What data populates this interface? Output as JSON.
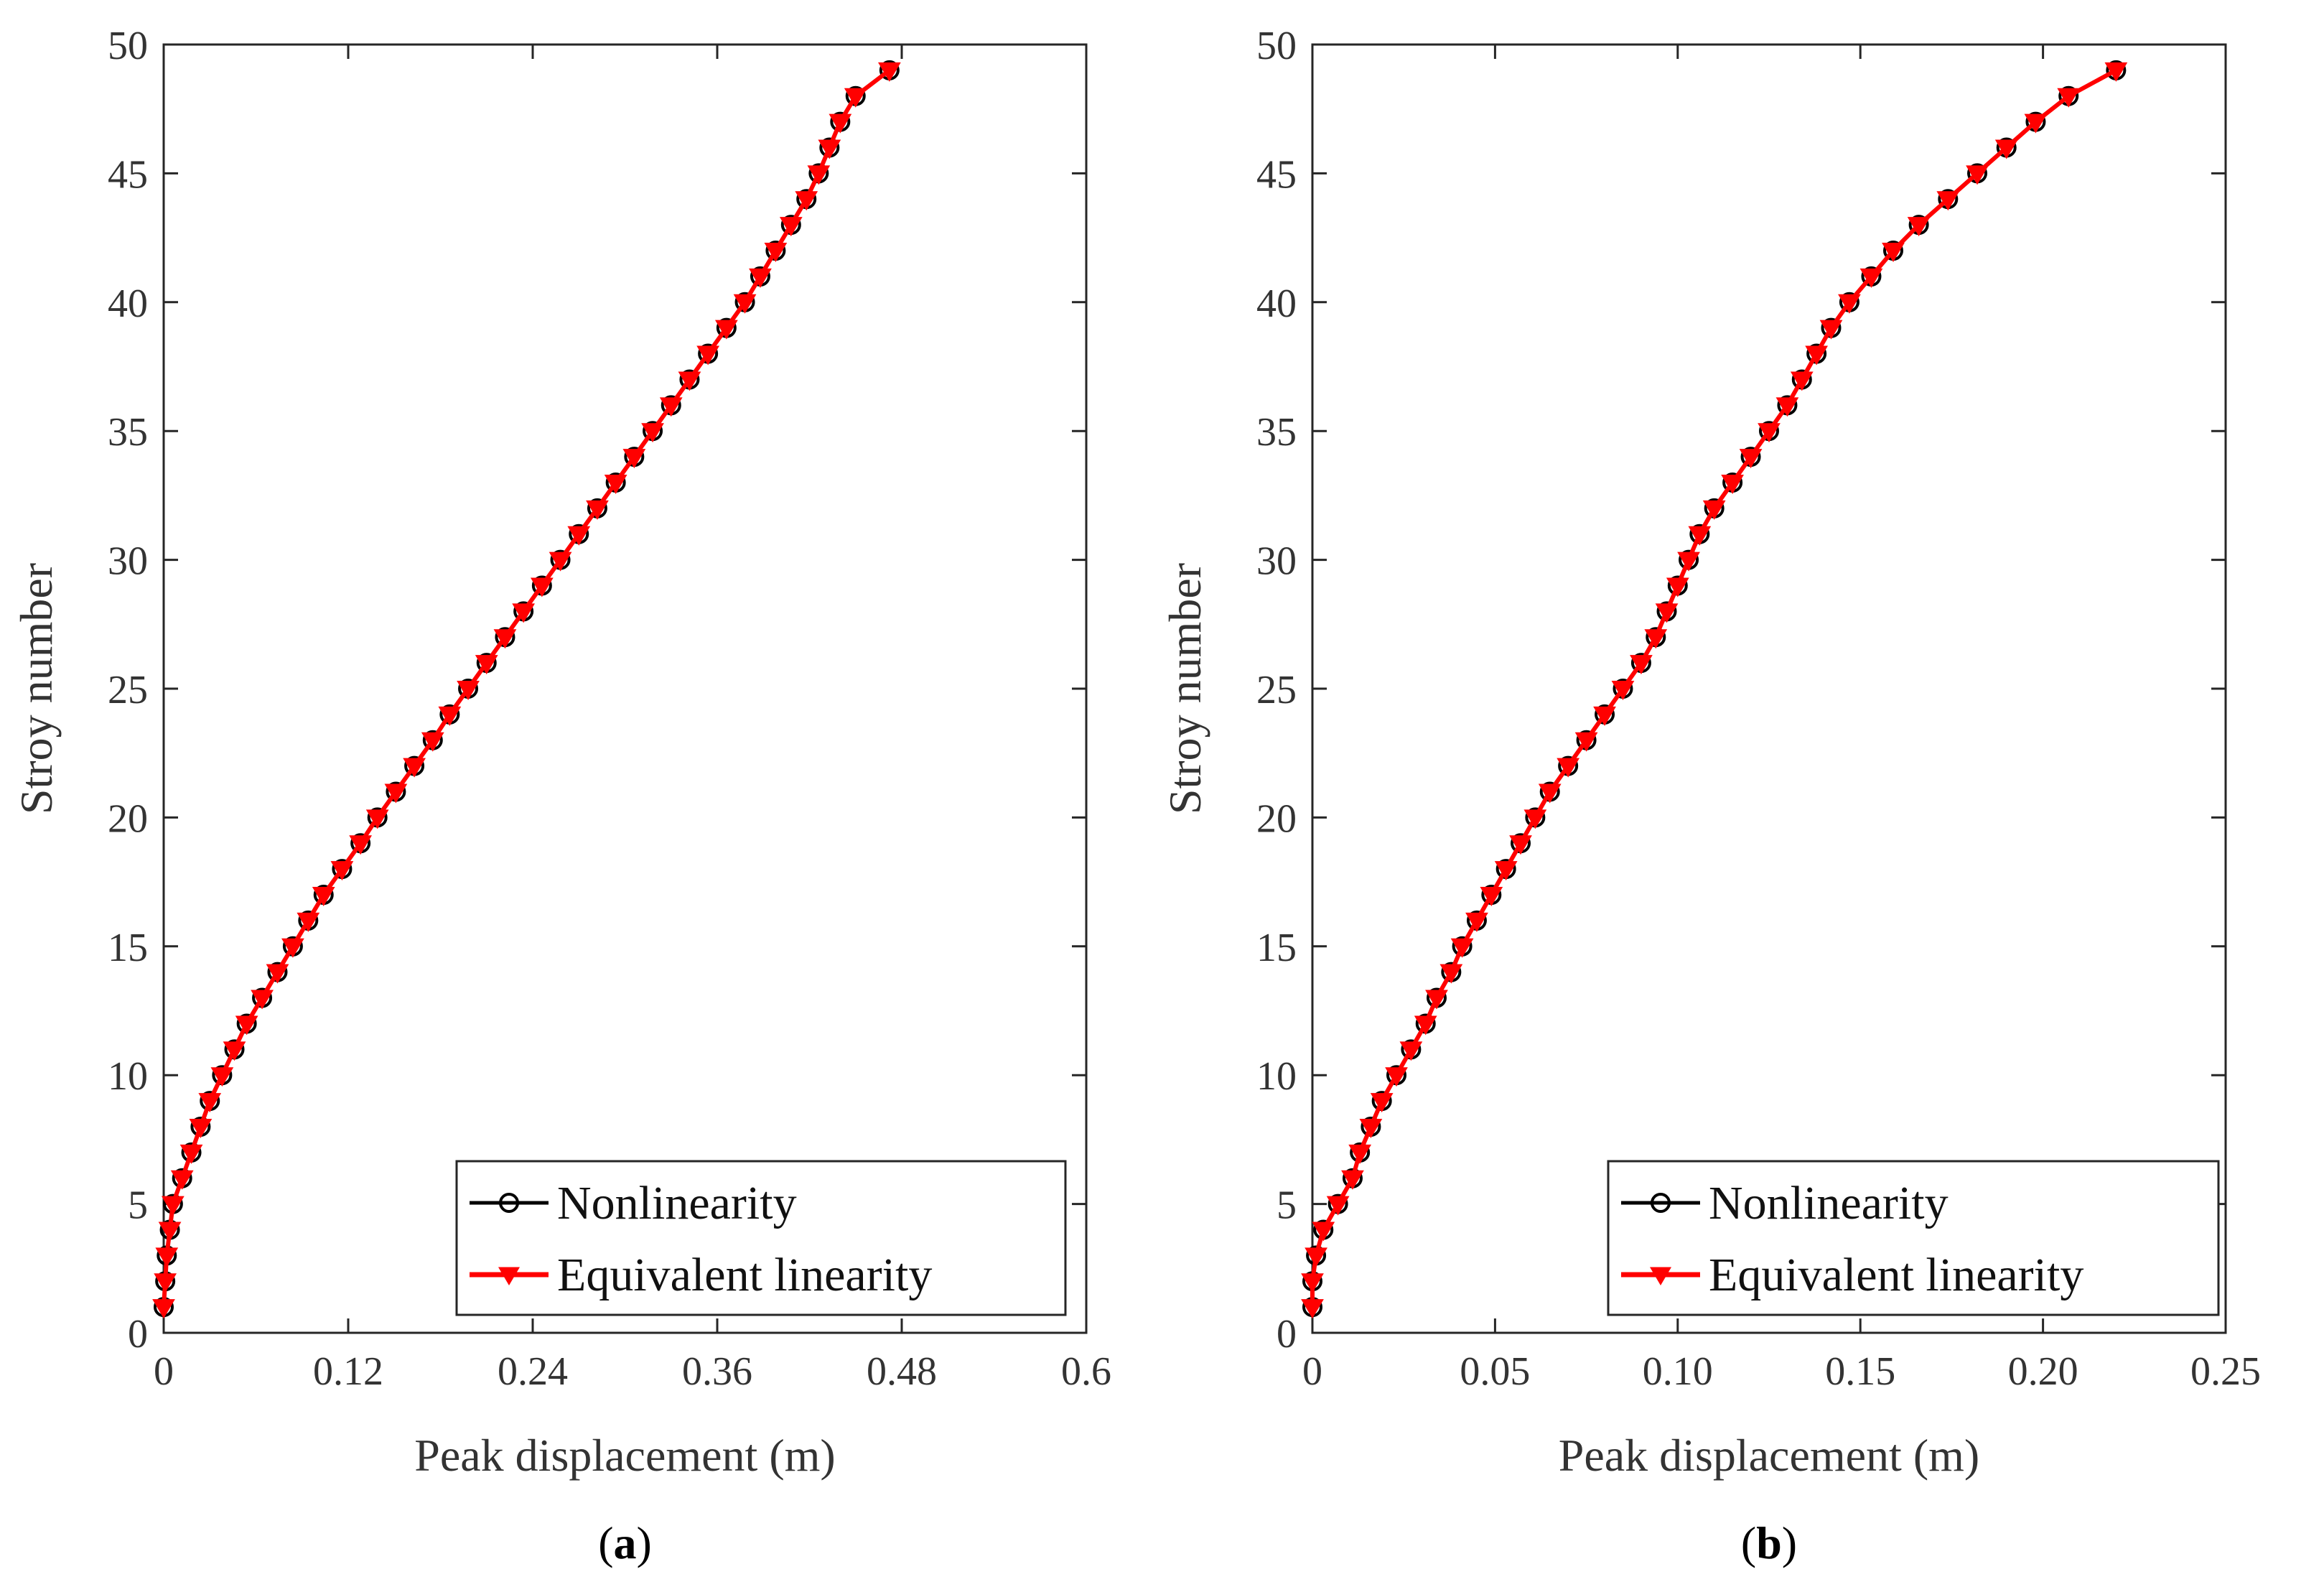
{
  "chart_data": [
    {
      "type": "line",
      "panel_label": "a",
      "xlabel": "Peak displacement (m)",
      "ylabel": "Stroy number",
      "xlim": [
        0,
        0.6
      ],
      "ylim": [
        0,
        50
      ],
      "xticks": [
        0,
        0.12,
        0.24,
        0.36,
        0.48,
        0.6
      ],
      "xtick_labels": [
        "0",
        "0.12",
        "0.24",
        "0.36",
        "0.48",
        "0.6"
      ],
      "yticks": [
        0,
        5,
        10,
        15,
        20,
        25,
        30,
        35,
        40,
        45,
        50
      ],
      "ytick_labels": [
        "0",
        "5",
        "10",
        "15",
        "20",
        "25",
        "30",
        "35",
        "40",
        "45",
        "50"
      ],
      "legend_position": "bottom-right",
      "y": [
        1,
        2,
        3,
        4,
        5,
        6,
        7,
        8,
        9,
        10,
        11,
        12,
        13,
        14,
        15,
        16,
        17,
        18,
        19,
        20,
        21,
        22,
        23,
        24,
        25,
        26,
        27,
        28,
        29,
        30,
        31,
        32,
        33,
        34,
        35,
        36,
        37,
        38,
        39,
        40,
        41,
        42,
        43,
        44,
        45,
        46,
        47,
        48,
        49
      ],
      "series": [
        {
          "name": "Nonlinearity",
          "color": "#000000",
          "marker": "circle",
          "x": [
            0.0,
            0.001,
            0.002,
            0.004,
            0.006,
            0.012,
            0.018,
            0.024,
            0.03,
            0.038,
            0.046,
            0.054,
            0.064,
            0.074,
            0.084,
            0.094,
            0.104,
            0.116,
            0.128,
            0.139,
            0.151,
            0.163,
            0.175,
            0.186,
            0.198,
            0.21,
            0.222,
            0.234,
            0.246,
            0.258,
            0.27,
            0.282,
            0.294,
            0.306,
            0.318,
            0.33,
            0.342,
            0.354,
            0.366,
            0.378,
            0.388,
            0.398,
            0.408,
            0.418,
            0.426,
            0.433,
            0.44,
            0.45,
            0.472
          ]
        },
        {
          "name": "Equivalent linearity",
          "color": "#ff0000",
          "marker": "triangle-down",
          "x": [
            0.0,
            0.001,
            0.002,
            0.004,
            0.006,
            0.012,
            0.018,
            0.024,
            0.03,
            0.038,
            0.046,
            0.054,
            0.064,
            0.074,
            0.084,
            0.094,
            0.104,
            0.116,
            0.128,
            0.139,
            0.151,
            0.163,
            0.175,
            0.186,
            0.198,
            0.21,
            0.222,
            0.234,
            0.246,
            0.258,
            0.27,
            0.282,
            0.294,
            0.306,
            0.318,
            0.33,
            0.342,
            0.354,
            0.366,
            0.378,
            0.388,
            0.398,
            0.408,
            0.418,
            0.426,
            0.433,
            0.44,
            0.45,
            0.472
          ]
        }
      ]
    },
    {
      "type": "line",
      "panel_label": "b",
      "xlabel": "Peak displacement (m)",
      "ylabel": "Stroy number",
      "xlim": [
        0,
        0.25
      ],
      "ylim": [
        0,
        50
      ],
      "xticks": [
        0,
        0.05,
        0.1,
        0.15,
        0.2,
        0.25
      ],
      "xtick_labels": [
        "0",
        "0.05",
        "0.10",
        "0.15",
        "0.20",
        "0.25"
      ],
      "yticks": [
        0,
        5,
        10,
        15,
        20,
        25,
        30,
        35,
        40,
        45,
        50
      ],
      "ytick_labels": [
        "0",
        "5",
        "10",
        "15",
        "20",
        "25",
        "30",
        "35",
        "40",
        "45",
        "50"
      ],
      "legend_position": "bottom-right",
      "y": [
        1,
        2,
        3,
        4,
        5,
        6,
        7,
        8,
        9,
        10,
        11,
        12,
        13,
        14,
        15,
        16,
        17,
        18,
        19,
        20,
        21,
        22,
        23,
        24,
        25,
        26,
        27,
        28,
        29,
        30,
        31,
        32,
        33,
        34,
        35,
        36,
        37,
        38,
        39,
        40,
        41,
        42,
        43,
        44,
        45,
        46,
        47,
        48,
        49
      ],
      "series": [
        {
          "name": "Nonlinearity",
          "color": "#000000",
          "marker": "circle",
          "x": [
            0.0,
            0.0,
            0.001,
            0.003,
            0.007,
            0.011,
            0.013,
            0.016,
            0.019,
            0.023,
            0.027,
            0.031,
            0.034,
            0.038,
            0.041,
            0.045,
            0.049,
            0.053,
            0.057,
            0.061,
            0.065,
            0.07,
            0.075,
            0.08,
            0.085,
            0.09,
            0.094,
            0.097,
            0.1,
            0.103,
            0.106,
            0.11,
            0.115,
            0.12,
            0.125,
            0.13,
            0.134,
            0.138,
            0.142,
            0.147,
            0.153,
            0.159,
            0.166,
            0.174,
            0.182,
            0.19,
            0.198,
            0.207,
            0.22
          ]
        },
        {
          "name": "Equivalent linearity",
          "color": "#ff0000",
          "marker": "triangle-down",
          "x": [
            0.0,
            0.0,
            0.001,
            0.003,
            0.007,
            0.011,
            0.013,
            0.016,
            0.019,
            0.023,
            0.027,
            0.031,
            0.034,
            0.038,
            0.041,
            0.045,
            0.049,
            0.053,
            0.057,
            0.061,
            0.065,
            0.07,
            0.075,
            0.08,
            0.085,
            0.09,
            0.094,
            0.097,
            0.1,
            0.103,
            0.106,
            0.11,
            0.115,
            0.12,
            0.125,
            0.13,
            0.134,
            0.138,
            0.142,
            0.147,
            0.153,
            0.159,
            0.166,
            0.174,
            0.182,
            0.19,
            0.198,
            0.207,
            0.22
          ]
        }
      ]
    }
  ]
}
